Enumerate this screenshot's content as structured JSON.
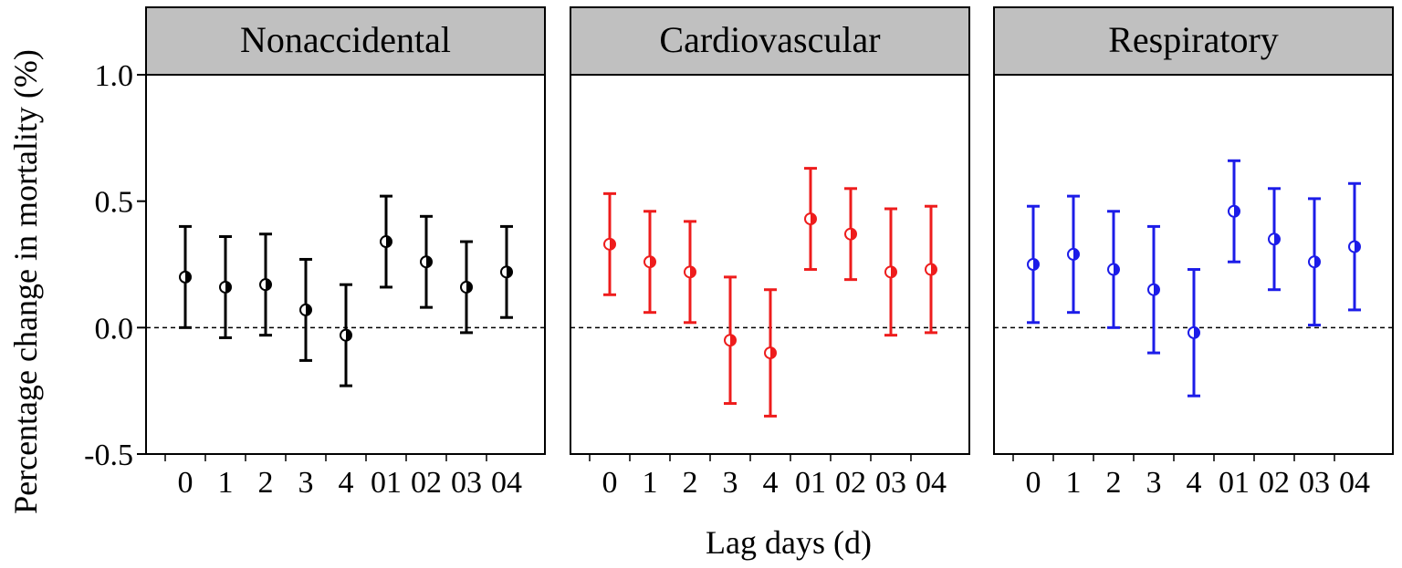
{
  "chart_data": {
    "type": "errorbar",
    "ylabel": "Percentage change in mortality (%)",
    "xlabel": "Lag days (d)",
    "ylim": [
      -0.5,
      1.0
    ],
    "yticks": [
      "1.0",
      "0.5",
      "0.0",
      "-0.5"
    ],
    "ytick_values": [
      1.0,
      0.5,
      0.0,
      -0.5
    ],
    "categories": [
      "0",
      "1",
      "2",
      "3",
      "4",
      "01",
      "02",
      "03",
      "04"
    ],
    "x_tick_text": [
      "0",
      "1",
      "2",
      "3",
      "4",
      "01",
      "02",
      "03",
      "04"
    ],
    "reference_line": 0.0,
    "panels": [
      {
        "title": "Nonaccidental",
        "color": "#000000",
        "estimates": [
          0.2,
          0.16,
          0.17,
          0.07,
          -0.03,
          0.34,
          0.26,
          0.16,
          0.22
        ],
        "lower": [
          0.0,
          -0.04,
          -0.03,
          -0.13,
          -0.23,
          0.16,
          0.08,
          -0.02,
          0.04
        ],
        "upper": [
          0.4,
          0.36,
          0.37,
          0.27,
          0.17,
          0.52,
          0.44,
          0.34,
          0.4
        ]
      },
      {
        "title": "Cardiovascular",
        "color": "#ee1c1c",
        "estimates": [
          0.33,
          0.26,
          0.22,
          -0.05,
          -0.1,
          0.43,
          0.37,
          0.22,
          0.23
        ],
        "lower": [
          0.13,
          0.06,
          0.02,
          -0.3,
          -0.35,
          0.23,
          0.19,
          -0.03,
          -0.02
        ],
        "upper": [
          0.53,
          0.46,
          0.42,
          0.2,
          0.15,
          0.63,
          0.55,
          0.47,
          0.48
        ]
      },
      {
        "title": "Respiratory",
        "color": "#1c1ce8",
        "estimates": [
          0.25,
          0.29,
          0.23,
          0.15,
          -0.02,
          0.46,
          0.35,
          0.26,
          0.32
        ],
        "lower": [
          0.02,
          0.06,
          0.0,
          -0.1,
          -0.27,
          0.26,
          0.15,
          0.01,
          0.07
        ],
        "upper": [
          0.48,
          0.52,
          0.46,
          0.4,
          0.23,
          0.66,
          0.55,
          0.51,
          0.57
        ]
      }
    ]
  }
}
